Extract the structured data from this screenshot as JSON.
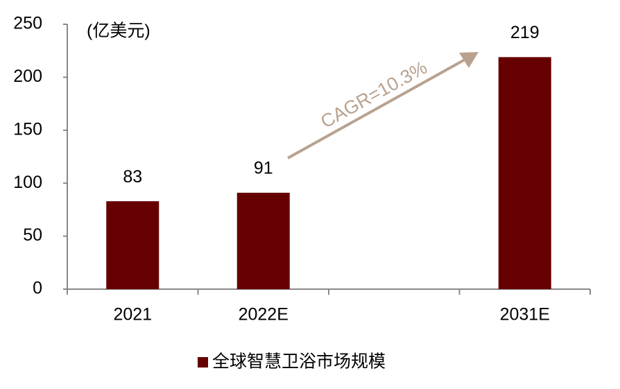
{
  "chart_data": {
    "type": "bar",
    "ylabel": "(亿美元)",
    "annotation": "CAGR=10.3%",
    "categories": [
      "2021",
      "2022E",
      null,
      "2031E"
    ],
    "series": [
      {
        "name": "全球智慧卫浴市场规模",
        "color": "#660000",
        "values": [
          83,
          91,
          null,
          219
        ]
      }
    ],
    "ylim": [
      0,
      250
    ],
    "yticks": [
      0,
      50,
      100,
      150,
      200,
      250
    ],
    "grid": false,
    "legend": "bottom",
    "value_labels_shown": true
  }
}
